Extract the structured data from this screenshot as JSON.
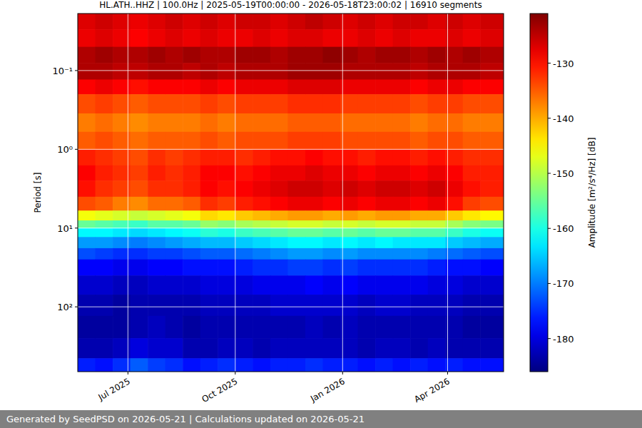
{
  "chart_data": {
    "type": "heatmap",
    "title": "HL.ATH..HHZ | 100.0Hz | 2025-05-19T00:00:00 - 2026-05-18T23:00:02 | 16910 segments",
    "y_label": "Period [s]",
    "colorbar_label": "Amplitude [m²/s⁴/Hz] [dB]",
    "footer": "Generated by SeedPSD on 2026-05-21 | Calculations updated on 2026-05-21",
    "log": "y",
    "grid": true,
    "xlim": [
      "2025-05-19",
      "2026-05-19"
    ],
    "xticks": [
      {
        "value": "2025-07-01",
        "label": "Jul 2025"
      },
      {
        "value": "2025-10-01",
        "label": "Oct 2025"
      },
      {
        "value": "2026-01-01",
        "label": "Jan 2026"
      },
      {
        "value": "2026-04-01",
        "label": "Apr 2026"
      }
    ],
    "ylim": [
      0.0189,
      665
    ],
    "yticks": [
      {
        "value": 0.1,
        "label": "10⁻¹"
      },
      {
        "value": 1,
        "label": "10⁰"
      },
      {
        "value": 10,
        "label": "10¹"
      },
      {
        "value": 100,
        "label": "10²"
      }
    ],
    "color_range": [
      -186,
      -121
    ],
    "color_ticks": [
      -180,
      -170,
      -160,
      -150,
      -140,
      -130
    ],
    "x_edges": [
      "2025-05-19",
      "2025-06-03",
      "2025-06-18",
      "2025-07-03",
      "2025-07-18",
      "2025-08-02",
      "2025-08-17",
      "2025-09-01",
      "2025-09-16",
      "2025-10-01",
      "2025-10-16",
      "2025-10-31",
      "2025-11-15",
      "2025-11-30",
      "2025-12-15",
      "2025-12-30",
      "2026-01-14",
      "2026-01-29",
      "2026-02-13",
      "2026-02-28",
      "2026-03-15",
      "2026-03-30",
      "2026-04-14",
      "2026-04-29",
      "2026-05-19"
    ],
    "y_edges": [
      0.0189,
      0.03,
      0.05,
      0.08,
      0.13,
      0.2,
      0.35,
      0.6,
      1,
      1.6,
      2.5,
      4,
      6,
      8,
      10,
      13,
      18,
      25,
      40,
      70,
      130,
      250,
      450,
      665
    ],
    "cells": [
      [
        -127,
        -126,
        -127,
        -128,
        -127,
        -126,
        -127,
        -126,
        -127,
        -126,
        -126,
        -127,
        -126,
        -125,
        -126,
        -127,
        -126,
        -127,
        -126,
        -126,
        -127,
        -126,
        -127,
        -126
      ],
      [
        -128,
        -127,
        -128,
        -129,
        -128,
        -127,
        -128,
        -127,
        -128,
        -128,
        -127,
        -128,
        -127,
        -127,
        -128,
        -128,
        -127,
        -128,
        -127,
        -128,
        -128,
        -127,
        -128,
        -127
      ],
      [
        -124,
        -123,
        -124,
        -124,
        -123,
        -124,
        -123,
        -124,
        -124,
        -123,
        -123,
        -124,
        -123,
        -123,
        -122,
        -123,
        -124,
        -123,
        -123,
        -124,
        -123,
        -124,
        -123,
        -124
      ],
      [
        -124,
        -124,
        -125,
        -125,
        -124,
        -124,
        -125,
        -124,
        -125,
        -124,
        -124,
        -124,
        -123,
        -123,
        -123,
        -124,
        -124,
        -124,
        -124,
        -125,
        -124,
        -124,
        -124,
        -125
      ],
      [
        -129,
        -128,
        -129,
        -130,
        -129,
        -129,
        -129,
        -128,
        -129,
        -128,
        -128,
        -128,
        -127,
        -127,
        -127,
        -128,
        -128,
        -128,
        -128,
        -129,
        -128,
        -128,
        -129,
        -129
      ],
      [
        -134,
        -133,
        -134,
        -135,
        -134,
        -134,
        -134,
        -133,
        -134,
        -133,
        -133,
        -133,
        -132,
        -132,
        -132,
        -133,
        -133,
        -133,
        -133,
        -134,
        -133,
        -133,
        -134,
        -134
      ],
      [
        -137,
        -136,
        -137,
        -138,
        -137,
        -137,
        -137,
        -136,
        -137,
        -136,
        -136,
        -136,
        -135,
        -135,
        -135,
        -136,
        -136,
        -136,
        -136,
        -137,
        -136,
        -136,
        -137,
        -137
      ],
      [
        -135,
        -134,
        -135,
        -136,
        -135,
        -135,
        -135,
        -134,
        -135,
        -134,
        -134,
        -134,
        -133,
        -133,
        -133,
        -134,
        -134,
        -134,
        -134,
        -135,
        -134,
        -134,
        -135,
        -135
      ],
      [
        -131,
        -132,
        -133,
        -134,
        -132,
        -133,
        -132,
        -131,
        -131,
        -132,
        -131,
        -130,
        -130,
        -129,
        -130,
        -130,
        -131,
        -130,
        -130,
        -131,
        -130,
        -131,
        -132,
        -132
      ],
      [
        -129,
        -131,
        -132,
        -133,
        -131,
        -132,
        -131,
        -129,
        -129,
        -130,
        -129,
        -128,
        -128,
        -127,
        -128,
        -128,
        -129,
        -128,
        -128,
        -129,
        -128,
        -129,
        -131,
        -131
      ],
      [
        -130,
        -132,
        -133,
        -134,
        -132,
        -132,
        -131,
        -129,
        -130,
        -129,
        -128,
        -127,
        -126,
        -126,
        -127,
        -126,
        -127,
        -126,
        -126,
        -127,
        -126,
        -128,
        -130,
        -131
      ],
      [
        -134,
        -135,
        -137,
        -138,
        -136,
        -136,
        -135,
        -132,
        -133,
        -131,
        -130,
        -129,
        -128,
        -128,
        -129,
        -128,
        -129,
        -128,
        -128,
        -129,
        -128,
        -130,
        -133,
        -134
      ],
      [
        -146,
        -147,
        -148,
        -149,
        -148,
        -147,
        -146,
        -143,
        -144,
        -142,
        -141,
        -140,
        -139,
        -139,
        -140,
        -139,
        -140,
        -139,
        -139,
        -140,
        -140,
        -142,
        -144,
        -145
      ],
      [
        -155,
        -156,
        -157,
        -158,
        -156,
        -156,
        -155,
        -152,
        -153,
        -151,
        -150,
        -149,
        -148,
        -148,
        -149,
        -148,
        -149,
        -148,
        -148,
        -149,
        -149,
        -151,
        -153,
        -154
      ],
      [
        -162,
        -162,
        -163,
        -164,
        -163,
        -162,
        -161,
        -159,
        -160,
        -158,
        -157,
        -156,
        -155,
        -155,
        -156,
        -155,
        -156,
        -155,
        -155,
        -156,
        -156,
        -158,
        -160,
        -161
      ],
      [
        -168,
        -168,
        -169,
        -170,
        -169,
        -168,
        -167,
        -166,
        -166,
        -165,
        -164,
        -163,
        -162,
        -162,
        -163,
        -162,
        -163,
        -162,
        -163,
        -163,
        -163,
        -165,
        -166,
        -167
      ],
      [
        -173,
        -174,
        -175,
        -175,
        -174,
        -174,
        -173,
        -172,
        -172,
        -171,
        -170,
        -169,
        -168,
        -168,
        -169,
        -168,
        -169,
        -169,
        -169,
        -169,
        -170,
        -171,
        -172,
        -173
      ],
      [
        -178,
        -178,
        -179,
        -179,
        -178,
        -178,
        -177,
        -177,
        -177,
        -176,
        -175,
        -175,
        -174,
        -174,
        -175,
        -174,
        -175,
        -175,
        -175,
        -175,
        -176,
        -177,
        -177,
        -178
      ],
      [
        -181,
        -181,
        -182,
        -182,
        -181,
        -181,
        -181,
        -180,
        -180,
        -180,
        -179,
        -179,
        -179,
        -178,
        -179,
        -178,
        -179,
        -179,
        -179,
        -179,
        -180,
        -180,
        -181,
        -181
      ],
      [
        -183,
        -183,
        -184,
        -183,
        -183,
        -183,
        -183,
        -182,
        -182,
        -182,
        -182,
        -181,
        -181,
        -181,
        -181,
        -181,
        -182,
        -181,
        -181,
        -182,
        -182,
        -182,
        -183,
        -183
      ],
      [
        -184,
        -184,
        -184,
        -183,
        -182,
        -183,
        -184,
        -183,
        -183,
        -183,
        -183,
        -183,
        -183,
        -182,
        -183,
        -182,
        -183,
        -183,
        -183,
        -183,
        -183,
        -183,
        -184,
        -184
      ],
      [
        -183,
        -183,
        -182,
        -180,
        -181,
        -181,
        -183,
        -183,
        -182,
        -182,
        -183,
        -182,
        -182,
        -182,
        -182,
        -182,
        -183,
        -182,
        -182,
        -183,
        -182,
        -183,
        -183,
        -183
      ],
      [
        -176,
        -177,
        -175,
        -172,
        -174,
        -175,
        -177,
        -176,
        -175,
        -176,
        -177,
        -176,
        -176,
        -175,
        -176,
        -176,
        -177,
        -176,
        -177,
        -176,
        -177,
        -176,
        -177,
        -177
      ]
    ]
  }
}
